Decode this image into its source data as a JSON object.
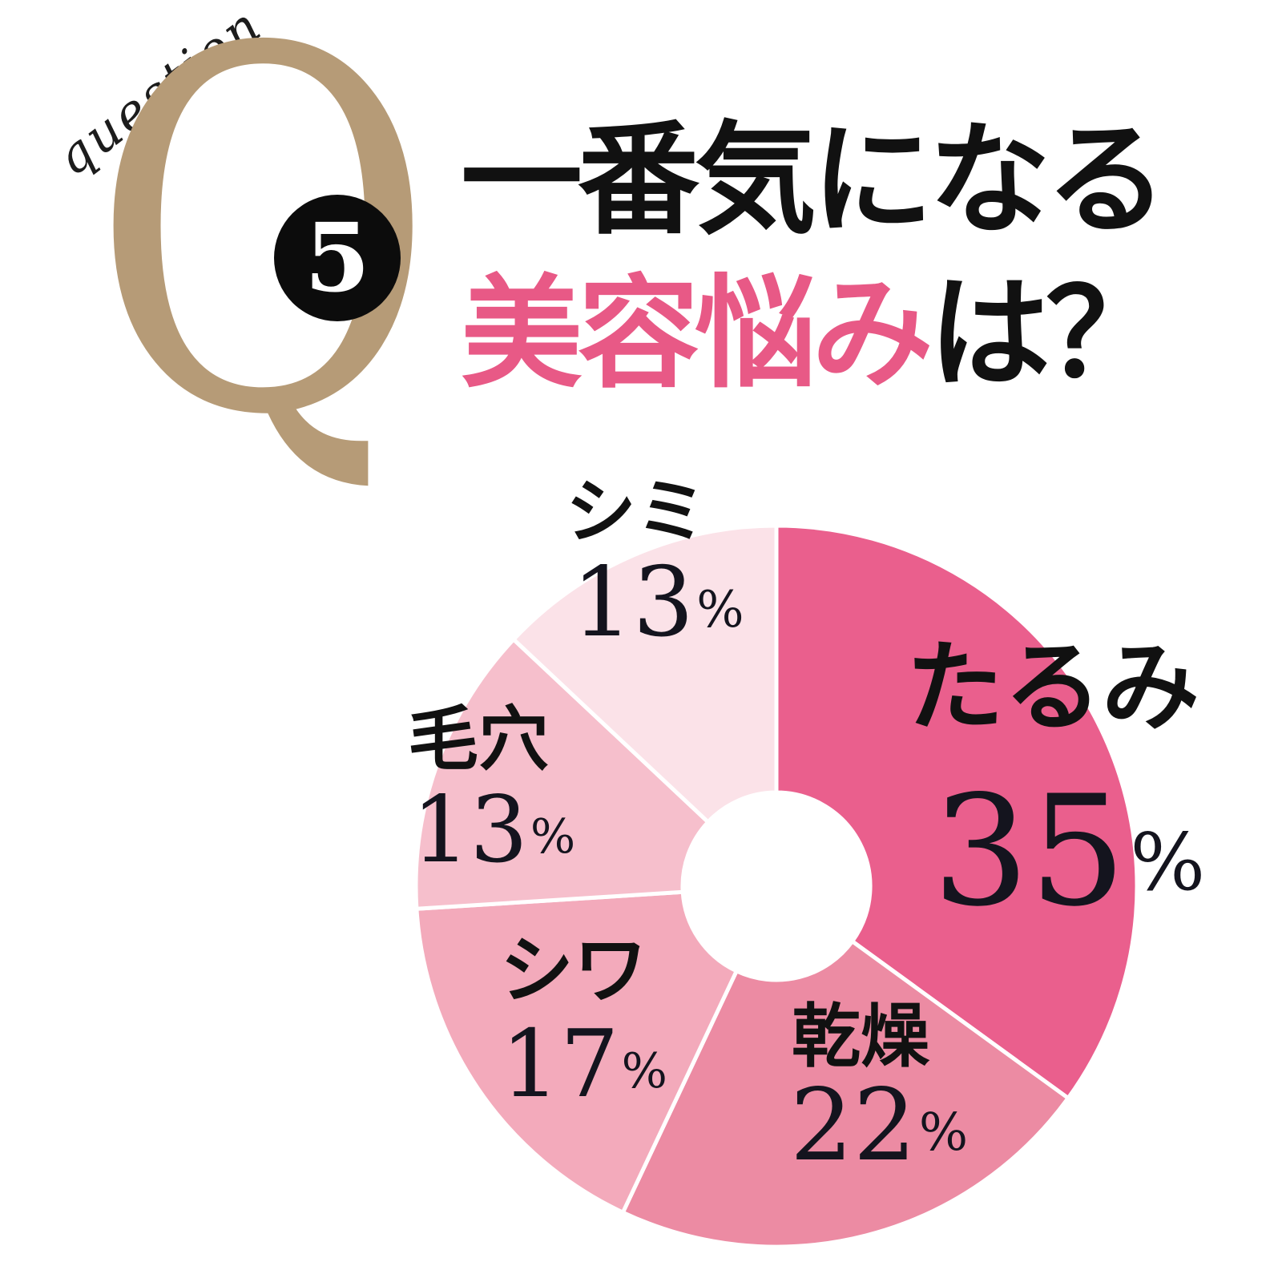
{
  "header": {
    "question_script": "question",
    "q_letter": "Q",
    "question_number": "5",
    "title_line1": "一番気になる",
    "title_line2_highlight": "美容悩み",
    "title_line2_rest": "は？",
    "colors": {
      "q_letter": "#b69b77",
      "title_highlight": "#e85986",
      "number_badge_bg": "#0c0c0c",
      "number_badge_fg": "#ffffff"
    }
  },
  "chart_data": {
    "type": "pie",
    "subtype": "donut",
    "title": "一番気になる美容悩みは？",
    "unit": "%",
    "direction": "clockwise",
    "start_angle_deg": 0,
    "hole_ratio": 0.26,
    "categories": [
      "たるみ",
      "乾燥",
      "シワ",
      "毛穴",
      "シミ"
    ],
    "slugs": [
      "tarumi",
      "kansou",
      "shiwa",
      "keana",
      "shimi"
    ],
    "values": [
      35,
      22,
      17,
      13,
      13
    ],
    "colors": [
      "#ea5f8d",
      "#ec8ba3",
      "#f3aabb",
      "#f6bfcc",
      "#fbe2e8"
    ],
    "separator_color": "#ffffff"
  }
}
